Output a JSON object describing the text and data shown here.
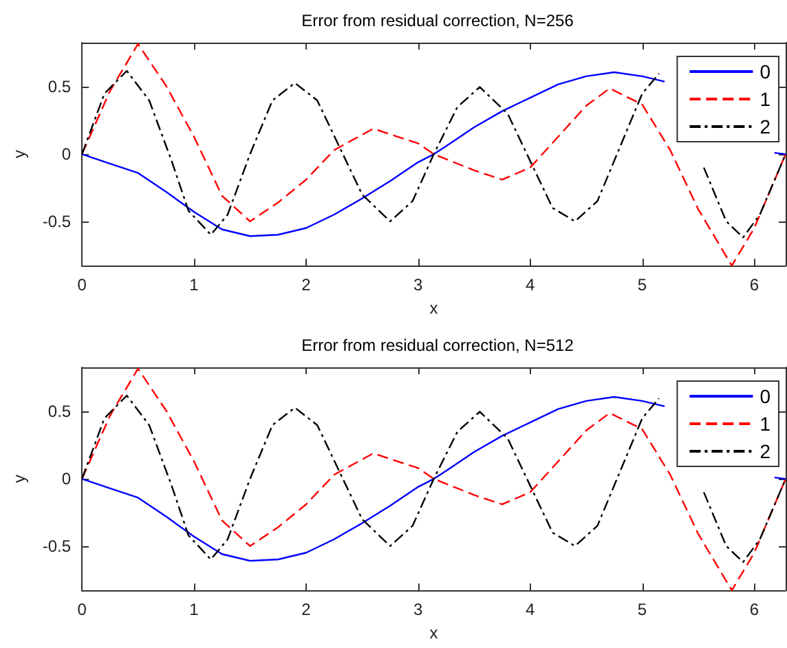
{
  "chart_data": [
    {
      "type": "line",
      "title": "Error from residual correction, N=256",
      "xlabel": "x",
      "ylabel": "y",
      "xlim": [
        0,
        6.28
      ],
      "ylim": [
        -0.83,
        0.83
      ],
      "xticks": [
        0,
        1,
        2,
        3,
        4,
        5,
        6
      ],
      "yticks": [
        -0.5,
        0,
        0.5
      ],
      "grid": false,
      "legend": "top right",
      "marker": "none",
      "series": [
        {
          "name": "0",
          "color": "#0000ff",
          "line_style": "solid",
          "x": [
            0,
            0.25,
            0.5,
            0.75,
            1,
            1.25,
            1.5,
            1.75,
            2,
            2.25,
            2.5,
            2.75,
            3,
            3.14,
            3.25,
            3.5,
            3.75,
            4,
            4.25,
            4.5,
            4.75,
            5,
            5.2,
            5.5,
            5.75,
            6,
            6.18,
            6.28
          ],
          "values": [
            0,
            -0.07,
            -0.14,
            -0.28,
            -0.43,
            -0.56,
            -0.61,
            -0.6,
            -0.55,
            -0.45,
            -0.33,
            -0.2,
            -0.06,
            0,
            0.06,
            0.2,
            0.32,
            0.42,
            0.52,
            0.58,
            0.61,
            0.58,
            0.54,
            null,
            null,
            null,
            0.01,
            0
          ]
        },
        {
          "name": "1",
          "color": "#ff0000",
          "line_style": "dashed",
          "x": [
            0,
            0.25,
            0.5,
            0.75,
            1,
            1.25,
            1.5,
            1.75,
            2,
            2.25,
            2.6,
            3,
            3.14,
            3.5,
            3.75,
            4,
            4.25,
            4.5,
            4.71,
            5,
            5.25,
            5.5,
            5.8,
            6,
            6.28
          ],
          "values": [
            0,
            0.47,
            0.82,
            0.51,
            0.13,
            -0.31,
            -0.5,
            -0.36,
            -0.19,
            0.03,
            0.19,
            0.08,
            0,
            -0.12,
            -0.19,
            -0.1,
            0.13,
            0.36,
            0.49,
            0.37,
            0.03,
            -0.41,
            -0.83,
            -0.55,
            0
          ]
        },
        {
          "name": "2",
          "color": "#000000",
          "line_style": "dashdot",
          "x": [
            0,
            0.2,
            0.4,
            0.6,
            0.8,
            0.95,
            1.15,
            1.3,
            1.5,
            1.7,
            1.9,
            2.1,
            2.3,
            2.5,
            2.75,
            2.95,
            3.14,
            3.35,
            3.55,
            3.8,
            4,
            4.2,
            4.4,
            4.6,
            4.8,
            5,
            5.15,
            5.35,
            5.55,
            5.75,
            5.9,
            6.05,
            6.28
          ],
          "values": [
            0,
            0.45,
            0.62,
            0.4,
            -0.05,
            -0.42,
            -0.6,
            -0.45,
            0,
            0.4,
            0.53,
            0.4,
            0.05,
            -0.3,
            -0.5,
            -0.35,
            0,
            0.35,
            0.5,
            0.3,
            -0.05,
            -0.4,
            -0.5,
            -0.35,
            0.05,
            0.45,
            0.6,
            null,
            -0.1,
            -0.5,
            -0.62,
            -0.45,
            0
          ]
        }
      ]
    },
    {
      "type": "line",
      "title": "Error from residual correction, N=512",
      "xlabel": "x",
      "ylabel": "y",
      "xlim": [
        0,
        6.28
      ],
      "ylim": [
        -0.83,
        0.83
      ],
      "xticks": [
        0,
        1,
        2,
        3,
        4,
        5,
        6
      ],
      "yticks": [
        -0.5,
        0,
        0.5
      ],
      "grid": false,
      "legend": "top right",
      "marker": "none",
      "series": [
        {
          "name": "0",
          "color": "#0000ff",
          "line_style": "solid",
          "x": [
            0,
            0.25,
            0.5,
            0.75,
            1,
            1.25,
            1.5,
            1.75,
            2,
            2.25,
            2.5,
            2.75,
            3,
            3.14,
            3.25,
            3.5,
            3.75,
            4,
            4.25,
            4.5,
            4.75,
            5,
            5.2,
            5.5,
            5.75,
            6,
            6.18,
            6.28
          ],
          "values": [
            0,
            -0.07,
            -0.14,
            -0.28,
            -0.43,
            -0.56,
            -0.61,
            -0.6,
            -0.55,
            -0.45,
            -0.33,
            -0.2,
            -0.06,
            0,
            0.06,
            0.2,
            0.32,
            0.42,
            0.52,
            0.58,
            0.61,
            0.58,
            0.54,
            null,
            null,
            null,
            0.01,
            0
          ]
        },
        {
          "name": "1",
          "color": "#ff0000",
          "line_style": "dashed",
          "x": [
            0,
            0.25,
            0.5,
            0.75,
            1,
            1.25,
            1.5,
            1.75,
            2,
            2.25,
            2.6,
            3,
            3.14,
            3.5,
            3.75,
            4,
            4.25,
            4.5,
            4.71,
            5,
            5.25,
            5.5,
            5.8,
            6,
            6.28
          ],
          "values": [
            0,
            0.47,
            0.82,
            0.51,
            0.13,
            -0.31,
            -0.5,
            -0.36,
            -0.19,
            0.03,
            0.19,
            0.08,
            0,
            -0.12,
            -0.19,
            -0.1,
            0.13,
            0.36,
            0.49,
            0.37,
            0.03,
            -0.41,
            -0.83,
            -0.55,
            0
          ]
        },
        {
          "name": "2",
          "color": "#000000",
          "line_style": "dashdot",
          "x": [
            0,
            0.2,
            0.4,
            0.6,
            0.8,
            0.95,
            1.15,
            1.3,
            1.5,
            1.7,
            1.9,
            2.1,
            2.3,
            2.5,
            2.75,
            2.95,
            3.14,
            3.35,
            3.55,
            3.8,
            4,
            4.2,
            4.4,
            4.6,
            4.8,
            5,
            5.15,
            5.35,
            5.55,
            5.75,
            5.9,
            6.05,
            6.28
          ],
          "values": [
            0,
            0.45,
            0.62,
            0.4,
            -0.05,
            -0.42,
            -0.6,
            -0.45,
            0,
            0.4,
            0.53,
            0.4,
            0.05,
            -0.3,
            -0.5,
            -0.35,
            0,
            0.35,
            0.5,
            0.3,
            -0.05,
            -0.4,
            -0.5,
            -0.35,
            0.05,
            0.45,
            0.6,
            null,
            -0.1,
            -0.5,
            -0.62,
            -0.45,
            0
          ]
        }
      ]
    }
  ]
}
